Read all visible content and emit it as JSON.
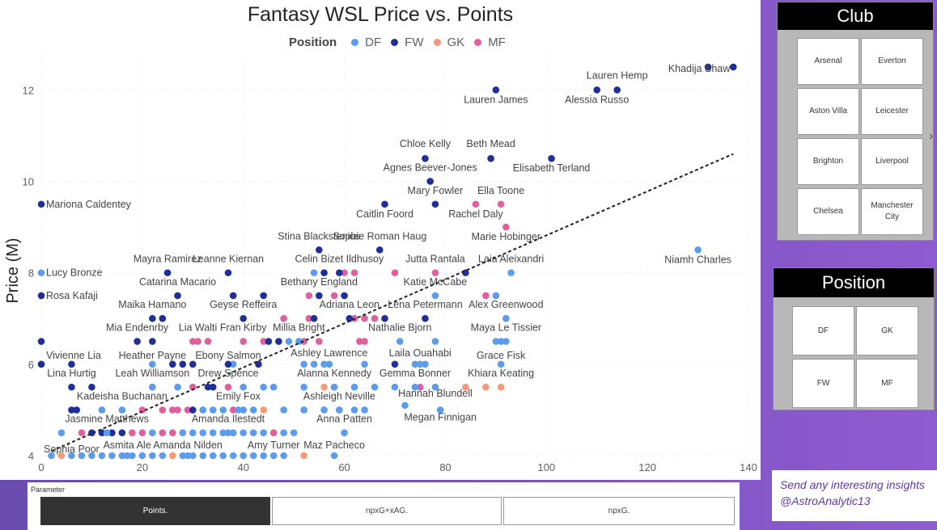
{
  "chart_data": {
    "type": "scatter",
    "title": "Fantasy WSL Price vs. Points",
    "xlabel": "",
    "ylabel": "Price (M)",
    "xlim": [
      0,
      140
    ],
    "ylim": [
      4,
      12.8
    ],
    "x_ticks": [
      0,
      20,
      40,
      60,
      80,
      100,
      120,
      140
    ],
    "y_ticks": [
      4,
      6,
      8,
      10,
      12
    ],
    "legend": {
      "title": "Position",
      "position": "top",
      "entries": [
        "DF",
        "FW",
        "GK",
        "MF"
      ]
    },
    "colors": {
      "DF": "#5b9cee",
      "FW": "#1f2f9a",
      "GK": "#f59a78",
      "MF": "#e0609e"
    },
    "trendline": {
      "x": [
        2,
        137
      ],
      "y": [
        4.1,
        10.6
      ],
      "style": "dashed"
    },
    "labeled_points": [
      {
        "name": "Khadija Shaw",
        "x": 137,
        "y": 12.5,
        "pos": "FW",
        "anchor": "end",
        "dy": 6
      },
      {
        "name": "Lauren Hemp",
        "x": 114,
        "y": 12.0,
        "pos": "FW",
        "anchor": "middle",
        "dy": -14
      },
      {
        "name": "Alessia Russo",
        "x": 110,
        "y": 12.0,
        "pos": "FW",
        "anchor": "middle",
        "dy": 16
      },
      {
        "name": "Lauren James",
        "x": 90,
        "y": 12.0,
        "pos": "FW",
        "anchor": "middle",
        "dy": 16
      },
      {
        "name": "Chloe Kelly",
        "x": 76,
        "y": 10.5,
        "pos": "FW",
        "anchor": "middle",
        "dy": -14
      },
      {
        "name": "Beth Mead",
        "x": 89,
        "y": 10.5,
        "pos": "FW",
        "anchor": "middle",
        "dy": -14
      },
      {
        "name": "Agnes Beever-Jones",
        "x": 77,
        "y": 10.0,
        "pos": "FW",
        "anchor": "middle",
        "dy": -13
      },
      {
        "name": "Elisabeth Terland",
        "x": 101,
        "y": 10.5,
        "pos": "FW",
        "anchor": "middle",
        "dy": 16
      },
      {
        "name": "Mariona Caldentey",
        "x": 0,
        "y": 9.5,
        "pos": "FW",
        "anchor": "start",
        "dy": 4
      },
      {
        "name": "Mary Fowler",
        "x": 78,
        "y": 9.5,
        "pos": "FW",
        "anchor": "middle",
        "dy": -13
      },
      {
        "name": "Ella Toone",
        "x": 91,
        "y": 9.5,
        "pos": "MF",
        "anchor": "middle",
        "dy": -13
      },
      {
        "name": "Rachel Daly",
        "x": 86,
        "y": 9.5,
        "pos": "MF",
        "anchor": "middle",
        "dy": 16
      },
      {
        "name": "Caitlin Foord",
        "x": 68,
        "y": 9.5,
        "pos": "FW",
        "anchor": "middle",
        "dy": 16
      },
      {
        "name": "Stina Blackstenius",
        "x": 55,
        "y": 8.5,
        "pos": "FW",
        "anchor": "middle",
        "dy": -13
      },
      {
        "name": "Sophie Roman Haug",
        "x": 67,
        "y": 8.5,
        "pos": "FW",
        "anchor": "middle",
        "dy": -13
      },
      {
        "name": "Marie Hobinger",
        "x": 92,
        "y": 9.0,
        "pos": "MF",
        "anchor": "middle",
        "dy": 16
      },
      {
        "name": "Mayra Ramirez",
        "x": 25,
        "y": 8.0,
        "pos": "FW",
        "anchor": "middle",
        "dy": -13
      },
      {
        "name": "Leanne Kiernan",
        "x": 37,
        "y": 8.0,
        "pos": "FW",
        "anchor": "middle",
        "dy": -13
      },
      {
        "name": "Celin Bizet Ildhusoy",
        "x": 59,
        "y": 8.0,
        "pos": "FW",
        "anchor": "middle",
        "dy": -13
      },
      {
        "name": "Jutta Rantala",
        "x": 78,
        "y": 8.0,
        "pos": "MF",
        "anchor": "middle",
        "dy": -13
      },
      {
        "name": "Laia Aleixandri",
        "x": 93,
        "y": 8.0,
        "pos": "DF",
        "anchor": "middle",
        "dy": -13
      },
      {
        "name": "Niamh Charles",
        "x": 130,
        "y": 8.5,
        "pos": "DF",
        "anchor": "middle",
        "dy": 16
      },
      {
        "name": "Lucy Bronze",
        "x": 0,
        "y": 8.0,
        "pos": "DF",
        "anchor": "start",
        "dy": 4
      },
      {
        "name": "Catarina Macario",
        "x": 27,
        "y": 7.5,
        "pos": "FW",
        "anchor": "middle",
        "dy": -13
      },
      {
        "name": "Bethany England",
        "x": 55,
        "y": 7.5,
        "pos": "FW",
        "anchor": "middle",
        "dy": -13
      },
      {
        "name": "Katie McCabe",
        "x": 78,
        "y": 7.5,
        "pos": "DF",
        "anchor": "middle",
        "dy": -13
      },
      {
        "name": "Rosa Kafaji",
        "x": 0,
        "y": 7.5,
        "pos": "FW",
        "anchor": "start",
        "dy": 4
      },
      {
        "name": "Maika Hamano",
        "x": 22,
        "y": 7.0,
        "pos": "FW",
        "anchor": "middle",
        "dy": -13
      },
      {
        "name": "Geyse Reffeira",
        "x": 40,
        "y": 7.0,
        "pos": "FW",
        "anchor": "middle",
        "dy": -13
      },
      {
        "name": "Adriana Leon",
        "x": 61,
        "y": 7.0,
        "pos": "FW",
        "anchor": "middle",
        "dy": -13
      },
      {
        "name": "Lena Petermann",
        "x": 76,
        "y": 7.0,
        "pos": "FW",
        "anchor": "middle",
        "dy": -13
      },
      {
        "name": "Alex Greenwood",
        "x": 92,
        "y": 7.0,
        "pos": "DF",
        "anchor": "middle",
        "dy": -13
      },
      {
        "name": "Mia Endenrby",
        "x": 19,
        "y": 6.5,
        "pos": "FW",
        "anchor": "middle",
        "dy": -13
      },
      {
        "name": "Lia Walti",
        "x": 31,
        "y": 6.5,
        "pos": "MF",
        "anchor": "middle",
        "dy": -13
      },
      {
        "name": "Fran Kirby",
        "x": 40,
        "y": 6.5,
        "pos": "MF",
        "anchor": "middle",
        "dy": -13
      },
      {
        "name": "Millia Bright",
        "x": 51,
        "y": 6.5,
        "pos": "DF",
        "anchor": "middle",
        "dy": -13
      },
      {
        "name": "Nathalie Bjorn",
        "x": 71,
        "y": 6.5,
        "pos": "DF",
        "anchor": "middle",
        "dy": -13
      },
      {
        "name": "Maya Le Tissier",
        "x": 92,
        "y": 6.5,
        "pos": "DF",
        "anchor": "middle",
        "dy": -13
      },
      {
        "name": "Vivienne Lia",
        "x": 0,
        "y": 6.0,
        "pos": "FW",
        "anchor": "start",
        "dy": -7
      },
      {
        "name": "Heather Payne",
        "x": 22,
        "y": 6.0,
        "pos": "DF",
        "anchor": "middle",
        "dy": -7
      },
      {
        "name": "Ebony Salmon",
        "x": 37,
        "y": 6.0,
        "pos": "FW",
        "anchor": "middle",
        "dy": -7
      },
      {
        "name": "Ashley Lawrence",
        "x": 57,
        "y": 6.0,
        "pos": "DF",
        "anchor": "middle",
        "dy": -10
      },
      {
        "name": "Laila Ouahabi",
        "x": 75,
        "y": 6.0,
        "pos": "DF",
        "anchor": "middle",
        "dy": -10
      },
      {
        "name": "Grace Fisk",
        "x": 91,
        "y": 6.0,
        "pos": "DF",
        "anchor": "middle",
        "dy": -7
      },
      {
        "name": "Lina Hurtig",
        "x": 6,
        "y": 5.5,
        "pos": "FW",
        "anchor": "middle",
        "dy": -13
      },
      {
        "name": "Leah Williamson",
        "x": 22,
        "y": 5.5,
        "pos": "DF",
        "anchor": "middle",
        "dy": -13
      },
      {
        "name": "Drew Spence",
        "x": 37,
        "y": 5.5,
        "pos": "MF",
        "anchor": "middle",
        "dy": -13
      },
      {
        "name": "Alanna Kennedy",
        "x": 58,
        "y": 5.5,
        "pos": "DF",
        "anchor": "middle",
        "dy": -13
      },
      {
        "name": "Gemma Bonner",
        "x": 74,
        "y": 5.5,
        "pos": "DF",
        "anchor": "middle",
        "dy": -13
      },
      {
        "name": "Khiara Keating",
        "x": 91,
        "y": 5.5,
        "pos": "GK",
        "anchor": "middle",
        "dy": -13
      },
      {
        "name": "Hannah Blundell",
        "x": 78,
        "y": 5.5,
        "pos": "DF",
        "anchor": "middle",
        "dy": 12
      },
      {
        "name": "Kadeisha Buchanan",
        "x": 16,
        "y": 5.0,
        "pos": "DF",
        "anchor": "middle",
        "dy": -13
      },
      {
        "name": "Emily Fox",
        "x": 39,
        "y": 5.0,
        "pos": "DF",
        "anchor": "middle",
        "dy": -13
      },
      {
        "name": "Ashleigh Neville",
        "x": 59,
        "y": 5.0,
        "pos": "DF",
        "anchor": "middle",
        "dy": -13
      },
      {
        "name": "Megan Finnigan",
        "x": 79,
        "y": 5.0,
        "pos": "DF",
        "anchor": "middle",
        "dy": 13
      },
      {
        "name": "Jasmine Matthews",
        "x": 13,
        "y": 4.5,
        "pos": "DF",
        "anchor": "middle",
        "dy": -13
      },
      {
        "name": "Amanda Ilestedt",
        "x": 37,
        "y": 4.5,
        "pos": "DF",
        "anchor": "middle",
        "dy": -13
      },
      {
        "name": "Anna Patten",
        "x": 60,
        "y": 4.5,
        "pos": "DF",
        "anchor": "middle",
        "dy": -13
      },
      {
        "name": "Asmita Ale",
        "x": 17,
        "y": 4.0,
        "pos": "DF",
        "anchor": "middle",
        "dy": -9
      },
      {
        "name": "Amanda Nilden",
        "x": 29,
        "y": 4.0,
        "pos": "DF",
        "anchor": "middle",
        "dy": -9
      },
      {
        "name": "Amy Turner",
        "x": 46,
        "y": 4.0,
        "pos": "DF",
        "anchor": "middle",
        "dy": -9
      },
      {
        "name": "Maz Pacheco",
        "x": 58,
        "y": 4.0,
        "pos": "DF",
        "anchor": "middle",
        "dy": -9
      },
      {
        "name": "Sophia Poor",
        "x": 6,
        "y": 4.0,
        "pos": "DF",
        "anchor": "middle",
        "dy": -4
      }
    ],
    "other_points": [
      [
        132,
        12.5,
        "FW"
      ],
      [
        56,
        8,
        "FW"
      ],
      [
        60,
        8,
        "MF"
      ],
      [
        70,
        8,
        "MF"
      ],
      [
        84,
        8,
        "FW"
      ],
      [
        62,
        8,
        "MF"
      ],
      [
        54,
        8,
        "DF"
      ],
      [
        38,
        7.5,
        "FW"
      ],
      [
        44,
        7.5,
        "FW"
      ],
      [
        53,
        7.5,
        "MF"
      ],
      [
        58,
        7.5,
        "MF"
      ],
      [
        60,
        7.5,
        "FW"
      ],
      [
        88,
        7.5,
        "MF"
      ],
      [
        90,
        7.5,
        "DF"
      ],
      [
        24,
        7,
        "FW"
      ],
      [
        48,
        7,
        "MF"
      ],
      [
        53,
        7,
        "MF"
      ],
      [
        54,
        7,
        "FW"
      ],
      [
        62,
        7,
        "MF"
      ],
      [
        64,
        7,
        "MF"
      ],
      [
        66,
        7,
        "MF"
      ],
      [
        68,
        7,
        "FW"
      ],
      [
        0,
        6.5,
        "FW"
      ],
      [
        22,
        6.5,
        "FW"
      ],
      [
        30,
        6.5,
        "MF"
      ],
      [
        33,
        6.5,
        "MF"
      ],
      [
        44,
        6.5,
        "MF"
      ],
      [
        45,
        6.5,
        "FW"
      ],
      [
        47,
        6.5,
        "FW"
      ],
      [
        49,
        6.5,
        "DF"
      ],
      [
        52,
        6.5,
        "MF"
      ],
      [
        55,
        6.5,
        "MF"
      ],
      [
        63,
        6.5,
        "MF"
      ],
      [
        64,
        6.5,
        "MF"
      ],
      [
        78,
        6.5,
        "DF"
      ],
      [
        90,
        6.5,
        "DF"
      ],
      [
        91,
        6.5,
        "DF"
      ],
      [
        0,
        6,
        "MF"
      ],
      [
        6,
        6,
        "FW"
      ],
      [
        26,
        6,
        "FW"
      ],
      [
        28,
        6,
        "FW"
      ],
      [
        30,
        6,
        "FW"
      ],
      [
        38,
        6,
        "DF"
      ],
      [
        43,
        6,
        "FW"
      ],
      [
        52,
        6,
        "DF"
      ],
      [
        54,
        6,
        "DF"
      ],
      [
        56,
        6,
        "DF"
      ],
      [
        64,
        6,
        "DF"
      ],
      [
        70,
        6,
        "FW"
      ],
      [
        74,
        6,
        "DF"
      ],
      [
        76,
        6,
        "DF"
      ],
      [
        10,
        5.5,
        "FW"
      ],
      [
        22,
        5.5,
        "MF"
      ],
      [
        27,
        5.5,
        "DF"
      ],
      [
        30,
        5.5,
        "MF"
      ],
      [
        33,
        5.5,
        "FW"
      ],
      [
        34,
        5.5,
        "FW"
      ],
      [
        40,
        5.5,
        "DF"
      ],
      [
        44,
        5.5,
        "DF"
      ],
      [
        46,
        5.5,
        "DF"
      ],
      [
        52,
        5.5,
        "DF"
      ],
      [
        56,
        5.5,
        "GK"
      ],
      [
        58,
        5.5,
        "DF"
      ],
      [
        62,
        5.5,
        "DF"
      ],
      [
        66,
        5.5,
        "DF"
      ],
      [
        70,
        5.5,
        "DF"
      ],
      [
        75,
        5.5,
        "MF"
      ],
      [
        84,
        5.5,
        "GK"
      ],
      [
        88,
        5.5,
        "GK"
      ],
      [
        6,
        5,
        "FW"
      ],
      [
        7,
        5,
        "FW"
      ],
      [
        12,
        5,
        "DF"
      ],
      [
        20,
        5,
        "MF"
      ],
      [
        24,
        5,
        "MF"
      ],
      [
        26,
        5,
        "MF"
      ],
      [
        27,
        5,
        "MF"
      ],
      [
        29,
        5,
        "MF"
      ],
      [
        30,
        5,
        "FW"
      ],
      [
        32,
        5,
        "DF"
      ],
      [
        34,
        5,
        "DF"
      ],
      [
        36,
        5,
        "DF"
      ],
      [
        38,
        5,
        "MF"
      ],
      [
        40,
        5,
        "DF"
      ],
      [
        42,
        5,
        "DF"
      ],
      [
        44,
        5,
        "GK"
      ],
      [
        48,
        5,
        "DF"
      ],
      [
        52,
        5,
        "DF"
      ],
      [
        56,
        5,
        "DF"
      ],
      [
        59,
        5,
        "GK"
      ],
      [
        62,
        5,
        "DF"
      ],
      [
        64,
        5,
        "DF"
      ],
      [
        72,
        5.1,
        "DF"
      ],
      [
        4,
        4.5,
        "DF"
      ],
      [
        8,
        4.5,
        "MF"
      ],
      [
        10,
        4.5,
        "FW"
      ],
      [
        12,
        4.5,
        "FW"
      ],
      [
        14,
        4.5,
        "FW"
      ],
      [
        16,
        4.5,
        "FW"
      ],
      [
        18,
        4.5,
        "MF"
      ],
      [
        20,
        4.5,
        "MF"
      ],
      [
        22,
        4.5,
        "DF"
      ],
      [
        24,
        4.5,
        "MF"
      ],
      [
        26,
        4.5,
        "MF"
      ],
      [
        28,
        4.5,
        "DF"
      ],
      [
        30,
        4.5,
        "DF"
      ],
      [
        32,
        4.5,
        "DF"
      ],
      [
        34,
        4.5,
        "DF"
      ],
      [
        36,
        4.5,
        "DF"
      ],
      [
        38,
        4.5,
        "DF"
      ],
      [
        40,
        4.5,
        "DF"
      ],
      [
        42,
        4.5,
        "DF"
      ],
      [
        44,
        4.5,
        "DF"
      ],
      [
        46,
        4.5,
        "MF"
      ],
      [
        48,
        4.5,
        "DF"
      ],
      [
        50,
        4.5,
        "DF"
      ],
      [
        2,
        4,
        "DF"
      ],
      [
        4,
        4,
        "GK"
      ],
      [
        8,
        4,
        "DF"
      ],
      [
        10,
        4,
        "DF"
      ],
      [
        12,
        4,
        "DF"
      ],
      [
        14,
        4,
        "DF"
      ],
      [
        16,
        4,
        "DF"
      ],
      [
        18,
        4,
        "DF"
      ],
      [
        20,
        4,
        "DF"
      ],
      [
        22,
        4,
        "DF"
      ],
      [
        24,
        4,
        "DF"
      ],
      [
        26,
        4,
        "GK"
      ],
      [
        28,
        4,
        "DF"
      ],
      [
        30,
        4,
        "DF"
      ],
      [
        32,
        4,
        "DF"
      ],
      [
        34,
        4,
        "DF"
      ],
      [
        36,
        4,
        "DF"
      ],
      [
        38,
        4,
        "DF"
      ],
      [
        40,
        4,
        "DF"
      ],
      [
        42,
        4,
        "DF"
      ],
      [
        44,
        4,
        "DF"
      ],
      [
        48,
        4,
        "DF"
      ],
      [
        52,
        4,
        "GK"
      ]
    ]
  },
  "parameter": {
    "label": "Parameter",
    "options": [
      "Points.",
      "npxG+xAG.",
      "npxG."
    ],
    "selected": "Points."
  },
  "club_slicer": {
    "title": "Club",
    "items": [
      "Arsenal",
      "Everton",
      "Aston Villa",
      "Leicester",
      "Brighton",
      "Liverpool",
      "Chelsea",
      "Manchester City"
    ]
  },
  "position_slicer": {
    "title": "Position",
    "items": [
      "DF",
      "GK",
      "FW",
      "MF"
    ]
  },
  "insights": {
    "line1": "Send any interesting insights",
    "line2": "@AstroAnalytic13"
  }
}
